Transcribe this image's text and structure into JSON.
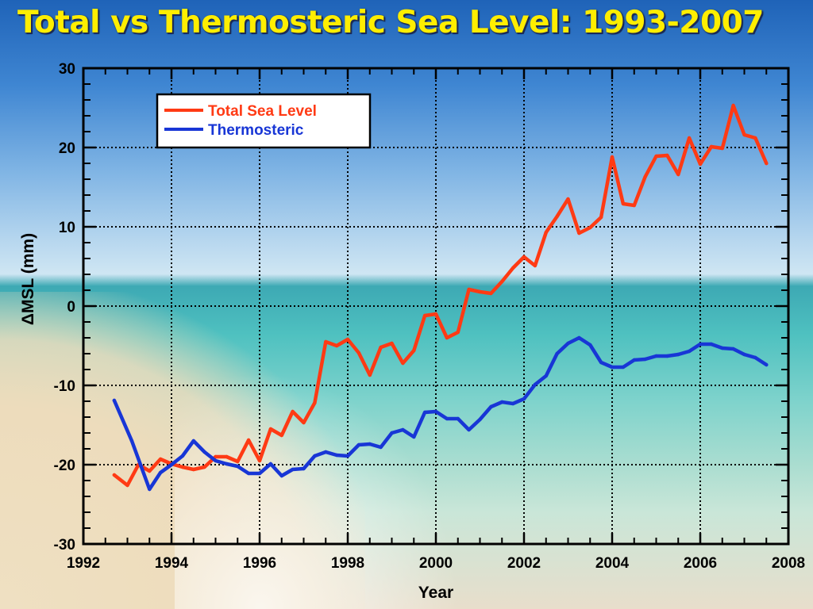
{
  "chart_data": {
    "type": "line",
    "title": "Total vs Thermosteric Sea Level: 1993-2007",
    "xlabel": "Year",
    "ylabel": "ΔMSL  (mm)",
    "xlim": [
      1992,
      2008
    ],
    "ylim": [
      -30,
      30
    ],
    "xticks": [
      1992,
      1994,
      1996,
      1998,
      2000,
      2002,
      2004,
      2006,
      2008
    ],
    "yticks": [
      30,
      20,
      10,
      0,
      -10,
      -20,
      -30
    ],
    "grid": true,
    "legend": "top-left",
    "series": [
      {
        "name": "Total Sea Level",
        "color": "#ff3a14",
        "x": [
          1992.7,
          1993.0,
          1993.25,
          1993.5,
          1993.75,
          1994.0,
          1994.25,
          1994.5,
          1994.75,
          1995.0,
          1995.25,
          1995.5,
          1995.75,
          1996.0,
          1996.25,
          1996.5,
          1996.75,
          1997.0,
          1997.25,
          1997.5,
          1997.75,
          1998.0,
          1998.25,
          1998.5,
          1998.75,
          1999.0,
          1999.25,
          1999.5,
          1999.75,
          2000.0,
          2000.25,
          2000.5,
          2000.75,
          2001.0,
          2001.25,
          2001.5,
          2001.75,
          2002.0,
          2002.25,
          2002.5,
          2002.75,
          2003.0,
          2003.25,
          2003.5,
          2003.75,
          2004.0,
          2004.25,
          2004.5,
          2004.75,
          2005.0,
          2005.25,
          2005.5,
          2005.75,
          2006.0,
          2006.25,
          2006.5,
          2006.75,
          2007.0,
          2007.25,
          2007.5
        ],
        "values": [
          -21.3,
          -22.6,
          -20.0,
          -20.8,
          -19.3,
          -19.9,
          -20.3,
          -20.6,
          -20.3,
          -19.0,
          -19.0,
          -19.6,
          -16.9,
          -19.5,
          -15.5,
          -16.3,
          -13.3,
          -14.7,
          -12.2,
          -4.5,
          -5.0,
          -4.2,
          -5.9,
          -8.7,
          -5.2,
          -4.7,
          -7.2,
          -5.6,
          -1.2,
          -1.0,
          -4.0,
          -3.3,
          2.1,
          1.8,
          1.6,
          3.1,
          4.8,
          6.2,
          5.1,
          9.3,
          11.3,
          13.5,
          9.2,
          9.9,
          11.2,
          18.8,
          12.9,
          12.7,
          16.3,
          18.9,
          19.0,
          16.6,
          21.2,
          17.9,
          20.1,
          19.9,
          25.3,
          21.6,
          21.2,
          18.0
        ]
      },
      {
        "name": "Thermosteric",
        "color": "#1836d6",
        "x": [
          1992.7,
          1993.1,
          1993.5,
          1993.75,
          1994.0,
          1994.25,
          1994.5,
          1994.75,
          1995.0,
          1995.25,
          1995.5,
          1995.75,
          1996.0,
          1996.25,
          1996.5,
          1996.75,
          1997.0,
          1997.25,
          1997.5,
          1997.75,
          1998.0,
          1998.25,
          1998.5,
          1998.75,
          1999.0,
          1999.25,
          1999.5,
          1999.75,
          2000.0,
          2000.25,
          2000.5,
          2000.75,
          2001.0,
          2001.25,
          2001.5,
          2001.75,
          2002.0,
          2002.25,
          2002.5,
          2002.75,
          2003.0,
          2003.25,
          2003.5,
          2003.75,
          2004.0,
          2004.25,
          2004.5,
          2004.75,
          2005.0,
          2005.25,
          2005.5,
          2005.75,
          2006.0,
          2006.25,
          2006.5,
          2006.75,
          2007.0,
          2007.25,
          2007.5
        ],
        "values": [
          -11.9,
          -17.0,
          -23.1,
          -21.0,
          -20.0,
          -18.9,
          -17.0,
          -18.4,
          -19.5,
          -19.9,
          -20.2,
          -21.1,
          -21.1,
          -19.9,
          -21.4,
          -20.6,
          -20.5,
          -18.9,
          -18.4,
          -18.8,
          -18.9,
          -17.5,
          -17.4,
          -17.8,
          -16.0,
          -15.6,
          -16.5,
          -13.4,
          -13.3,
          -14.2,
          -14.2,
          -15.6,
          -14.3,
          -12.7,
          -12.1,
          -12.3,
          -11.7,
          -9.9,
          -8.8,
          -6.0,
          -4.7,
          -4.0,
          -4.9,
          -7.1,
          -7.7,
          -7.7,
          -6.8,
          -6.7,
          -6.3,
          -6.3,
          -6.1,
          -5.7,
          -4.8,
          -4.8,
          -5.3,
          -5.4,
          -6.1,
          -6.5,
          -7.4
        ]
      }
    ]
  }
}
